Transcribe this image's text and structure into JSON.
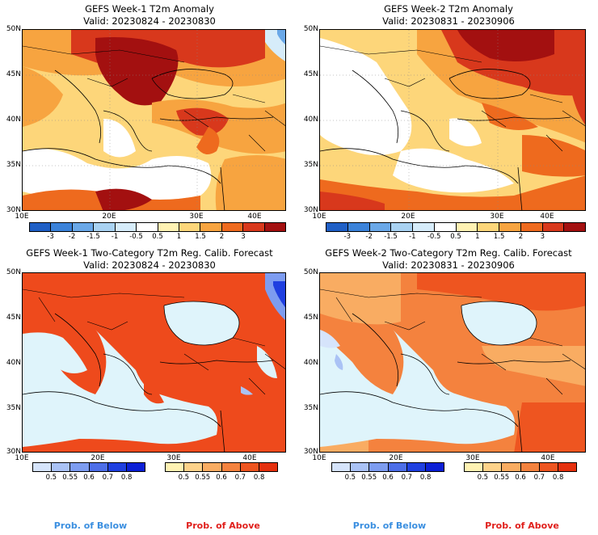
{
  "panels": [
    {
      "title": "GEFS Week-1 T2m Anomaly",
      "valid": "Valid: 20230824 - 20230830"
    },
    {
      "title": "GEFS Week-2 T2m Anomaly",
      "valid": "Valid: 20230831 - 20230906"
    },
    {
      "title": "GEFS Week-1 Two-Category T2m Reg. Calib. Forecast",
      "valid": "Valid: 20230824 - 20230830"
    },
    {
      "title": "GEFS Week-2 Two-Category T2m Reg. Calib. Forecast",
      "valid": "Valid: 20230831 - 20230906"
    }
  ],
  "lat_labels": [
    "50N",
    "45N",
    "40N",
    "35N",
    "30N"
  ],
  "lon_labels": [
    "10E",
    "20E",
    "30E",
    "40E"
  ],
  "anomaly_colorbar": {
    "ticks": [
      "-3",
      "-2",
      "-1.5",
      "-1",
      "-0.5",
      "0.5",
      "1",
      "1.5",
      "2",
      "3"
    ],
    "colors": [
      "#1f5fc6",
      "#3b82d9",
      "#6aa8e8",
      "#a9d2f2",
      "#d6ecfa",
      "#ffffff",
      "#fff2b3",
      "#fdd67a",
      "#f7a440",
      "#ee6a1e",
      "#d8381c",
      "#a31010"
    ]
  },
  "prob_below_colorbar": {
    "ticks": [
      "0.5",
      "0.55",
      "0.6",
      "0.7",
      "0.8"
    ],
    "colors": [
      "#d6e4fb",
      "#aac2f5",
      "#7d9cf0",
      "#4d6ee8",
      "#1f3fe0",
      "#0b1fd6"
    ]
  },
  "prob_above_colorbar": {
    "ticks": [
      "0.5",
      "0.55",
      "0.6",
      "0.7",
      "0.8"
    ],
    "colors": [
      "#fff2b3",
      "#fdd28a",
      "#f9ac62",
      "#f4823e",
      "#ee5520",
      "#e5300e"
    ]
  },
  "legend": {
    "below": "Prob. of Below",
    "above": "Prob. of Above",
    "below_color": "#3b8fe0",
    "above_color": "#e0201c"
  },
  "colors": {
    "sea_prob": "#dff4fb",
    "land_dark_red": "#a31010",
    "land_red": "#d8381c",
    "land_orange": "#ee6a1e",
    "land_lorange": "#f7a440",
    "land_yellow": "#fdd67a",
    "land_pale": "#fff2b3"
  }
}
